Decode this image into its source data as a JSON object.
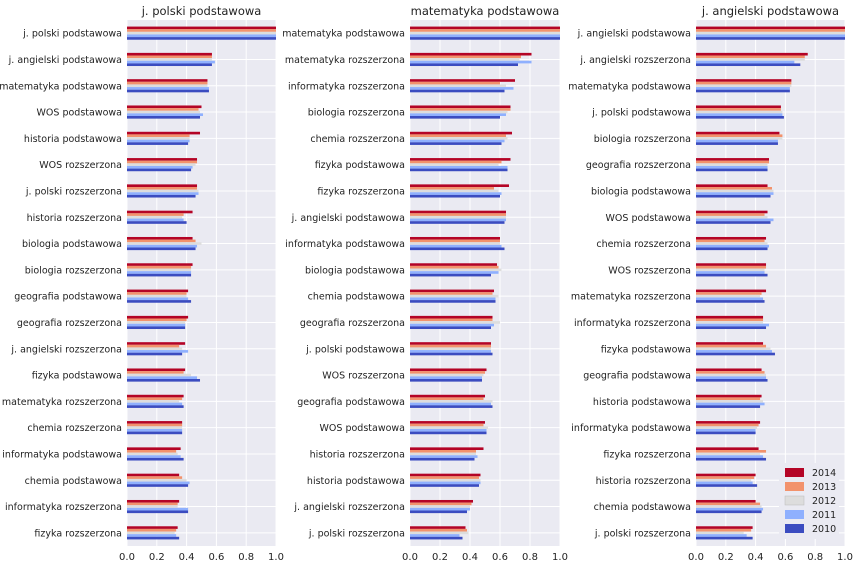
{
  "colors": {
    "background": "#ffffff",
    "plot_bg": "#eaeaf2",
    "grid": "#ffffff",
    "2014": "#b40426",
    "2013": "#f2926c",
    "2012": "#dddddd",
    "2011": "#8fb0fe",
    "2010": "#3b4cc0"
  },
  "chart_data": [
    {
      "type": "bar",
      "orientation": "horizontal",
      "title": "j. polski podstawowa",
      "xlim": [
        0,
        1.0
      ],
      "xticks": [
        "0.0",
        "0.2",
        "0.4",
        "0.6",
        "0.8",
        "1.0"
      ],
      "categories": [
        "j. polski podstawowa",
        "j. angielski podstawowa",
        "matematyka podstawowa",
        "WOS podstawowa",
        "historia podstawowa",
        "WOS rozszerzona",
        "j. polski rozszerzona",
        "historia rozszerzona",
        "biologia podstawowa",
        "biologia rozszerzona",
        "geografia podstawowa",
        "geografia rozszerzona",
        "j. angielski rozszerzona",
        "fizyka podstawowa",
        "matematyka rozszerzona",
        "chemia rozszerzona",
        "informatyka podstawowa",
        "chemia podstawowa",
        "informatyka rozszerzona",
        "fizyka rozszerzona"
      ],
      "series": [
        {
          "name": "2014",
          "values": [
            1.0,
            0.57,
            0.54,
            0.5,
            0.49,
            0.47,
            0.47,
            0.44,
            0.44,
            0.44,
            0.41,
            0.41,
            0.39,
            0.39,
            0.38,
            0.37,
            0.36,
            0.35,
            0.35,
            0.34
          ]
        },
        {
          "name": "2013",
          "values": [
            1.0,
            0.57,
            0.54,
            0.48,
            0.42,
            0.47,
            0.47,
            0.38,
            0.46,
            0.43,
            0.4,
            0.4,
            0.35,
            0.38,
            0.37,
            0.37,
            0.33,
            0.37,
            0.34,
            0.33
          ]
        },
        {
          "name": "2012",
          "values": [
            1.0,
            0.57,
            0.54,
            0.49,
            0.42,
            0.46,
            0.48,
            0.37,
            0.5,
            0.43,
            0.4,
            0.39,
            0.37,
            0.43,
            0.35,
            0.37,
            0.34,
            0.4,
            0.34,
            0.32
          ]
        },
        {
          "name": "2011",
          "values": [
            1.0,
            0.59,
            0.55,
            0.51,
            0.42,
            0.44,
            0.48,
            0.38,
            0.47,
            0.43,
            0.41,
            0.39,
            0.41,
            0.47,
            0.37,
            0.37,
            0.36,
            0.42,
            0.41,
            0.33
          ]
        },
        {
          "name": "2010",
          "values": [
            1.0,
            0.57,
            0.55,
            0.49,
            0.41,
            0.43,
            0.46,
            0.4,
            0.46,
            0.43,
            0.43,
            0.39,
            0.37,
            0.49,
            0.38,
            0.37,
            0.38,
            0.41,
            0.41,
            0.35
          ]
        }
      ]
    },
    {
      "type": "bar",
      "orientation": "horizontal",
      "title": "matematyka podstawowa",
      "xlim": [
        0,
        1.0
      ],
      "xticks": [
        "0.0",
        "0.2",
        "0.4",
        "0.6",
        "0.8",
        "1.0"
      ],
      "categories": [
        "matematyka podstawowa",
        "matematyka rozszerzona",
        "informatyka rozszerzona",
        "biologia rozszerzona",
        "chemia rozszerzona",
        "fizyka podstawowa",
        "fizyka rozszerzona",
        "j. angielski podstawowa",
        "informatyka podstawowa",
        "biologia podstawowa",
        "chemia podstawowa",
        "geografia rozszerzona",
        "j. polski podstawowa",
        "WOS rozszerzona",
        "geografia podstawowa",
        "WOS podstawowa",
        "historia rozszerzona",
        "historia podstawowa",
        "j. angielski rozszerzona",
        "j. polski rozszerzona"
      ],
      "series": [
        {
          "name": "2014",
          "values": [
            1.0,
            0.81,
            0.7,
            0.67,
            0.68,
            0.67,
            0.66,
            0.64,
            0.6,
            0.58,
            0.56,
            0.55,
            0.54,
            0.51,
            0.5,
            0.5,
            0.49,
            0.47,
            0.42,
            0.37
          ]
        },
        {
          "name": "2013",
          "values": [
            1.0,
            0.74,
            0.6,
            0.67,
            0.64,
            0.61,
            0.56,
            0.64,
            0.6,
            0.59,
            0.55,
            0.55,
            0.54,
            0.5,
            0.49,
            0.49,
            0.44,
            0.46,
            0.41,
            0.38
          ]
        },
        {
          "name": "2012",
          "values": [
            1.0,
            0.73,
            0.64,
            0.65,
            0.65,
            0.59,
            0.59,
            0.64,
            0.6,
            0.61,
            0.59,
            0.6,
            0.54,
            0.49,
            0.55,
            0.52,
            0.44,
            0.47,
            0.4,
            0.39
          ]
        },
        {
          "name": "2011",
          "values": [
            1.0,
            0.81,
            0.69,
            0.64,
            0.63,
            0.65,
            0.61,
            0.64,
            0.61,
            0.59,
            0.57,
            0.56,
            0.54,
            0.48,
            0.54,
            0.51,
            0.45,
            0.47,
            0.4,
            0.33
          ]
        },
        {
          "name": "2010",
          "values": [
            1.0,
            0.72,
            0.63,
            0.6,
            0.61,
            0.65,
            0.6,
            0.63,
            0.63,
            0.54,
            0.57,
            0.54,
            0.55,
            0.48,
            0.55,
            0.51,
            0.43,
            0.46,
            0.38,
            0.35
          ]
        }
      ]
    },
    {
      "type": "bar",
      "orientation": "horizontal",
      "title": "j. angielski podstawowa",
      "xlim": [
        0,
        1.0
      ],
      "xticks": [
        "0.0",
        "0.2",
        "0.4",
        "0.6",
        "0.8",
        "1.0"
      ],
      "categories": [
        "j. angielski podstawowa",
        "j. angielski rozszerzona",
        "matematyka podstawowa",
        "j. polski podstawowa",
        "biologia rozszerzona",
        "geografia rozszerzona",
        "biologia podstawowa",
        "WOS podstawowa",
        "chemia rozszerzona",
        "WOS rozszerzona",
        "matematyka rozszerzona",
        "informatyka rozszerzona",
        "fizyka podstawowa",
        "geografia podstawowa",
        "historia podstawowa",
        "informatyka podstawowa",
        "fizyka rozszerzona",
        "historia rozszerzona",
        "chemia podstawowa",
        "j. polski rozszerzona"
      ],
      "series": [
        {
          "name": "2014",
          "values": [
            1.0,
            0.75,
            0.64,
            0.57,
            0.56,
            0.49,
            0.48,
            0.48,
            0.47,
            0.47,
            0.47,
            0.45,
            0.45,
            0.44,
            0.44,
            0.43,
            0.42,
            0.4,
            0.4,
            0.38
          ]
        },
        {
          "name": "2013",
          "values": [
            1.0,
            0.73,
            0.64,
            0.57,
            0.58,
            0.49,
            0.51,
            0.46,
            0.46,
            0.47,
            0.44,
            0.45,
            0.47,
            0.46,
            0.43,
            0.42,
            0.47,
            0.39,
            0.43,
            0.37
          ]
        },
        {
          "name": "2012",
          "values": [
            1.0,
            0.73,
            0.64,
            0.58,
            0.58,
            0.48,
            0.52,
            0.48,
            0.48,
            0.46,
            0.43,
            0.45,
            0.5,
            0.47,
            0.45,
            0.41,
            0.43,
            0.37,
            0.44,
            0.32
          ]
        },
        {
          "name": "2011",
          "values": [
            1.0,
            0.66,
            0.63,
            0.58,
            0.55,
            0.48,
            0.52,
            0.52,
            0.49,
            0.46,
            0.45,
            0.49,
            0.51,
            0.47,
            0.46,
            0.4,
            0.45,
            0.38,
            0.45,
            0.34
          ]
        },
        {
          "name": "2010",
          "values": [
            1.0,
            0.7,
            0.63,
            0.59,
            0.55,
            0.48,
            0.5,
            0.5,
            0.48,
            0.48,
            0.46,
            0.47,
            0.53,
            0.48,
            0.43,
            0.4,
            0.47,
            0.41,
            0.44,
            0.38
          ]
        }
      ]
    }
  ],
  "legend": {
    "location": "lower-right",
    "entries": [
      "2014",
      "2013",
      "2012",
      "2011",
      "2010"
    ]
  }
}
